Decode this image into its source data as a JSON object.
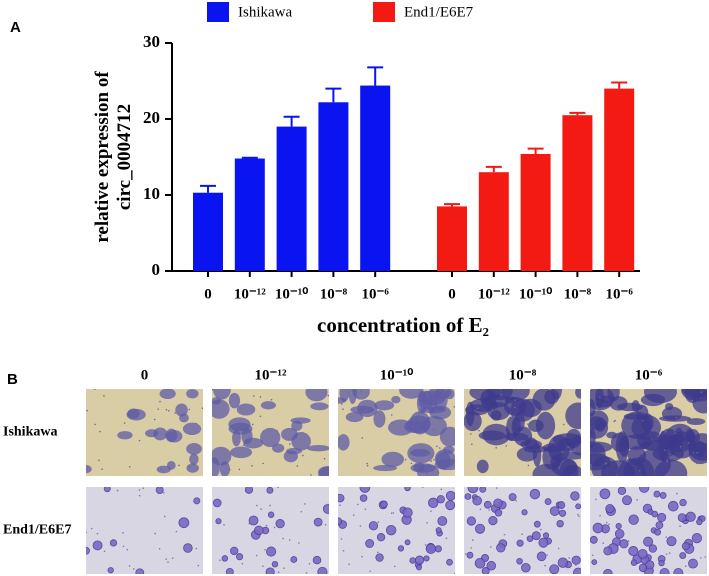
{
  "chart_data": {
    "type": "bar",
    "panel_labels": [
      "A",
      "B"
    ],
    "ylabel": "relative expression of circ_0004712",
    "xlabel": "concentration of E₂",
    "categories": [
      "0",
      "10⁻¹²",
      "10⁻¹⁰",
      "10⁻⁸",
      "10⁻⁶"
    ],
    "series": [
      {
        "name": "Ishikawa",
        "color": "#0a14f0",
        "values": [
          10.3,
          14.8,
          19.0,
          22.2,
          24.4
        ],
        "errors": [
          0.9,
          0.1,
          1.3,
          1.8,
          2.4
        ]
      },
      {
        "name": "End1/E6E7",
        "color": "#f41a14",
        "values": [
          8.5,
          13.0,
          15.4,
          20.5,
          24.0
        ],
        "errors": [
          0.3,
          0.7,
          0.7,
          0.3,
          0.8
        ]
      }
    ],
    "ylim": [
      0,
      30
    ],
    "yticks": [
      0,
      10,
      20,
      30
    ]
  }
}
